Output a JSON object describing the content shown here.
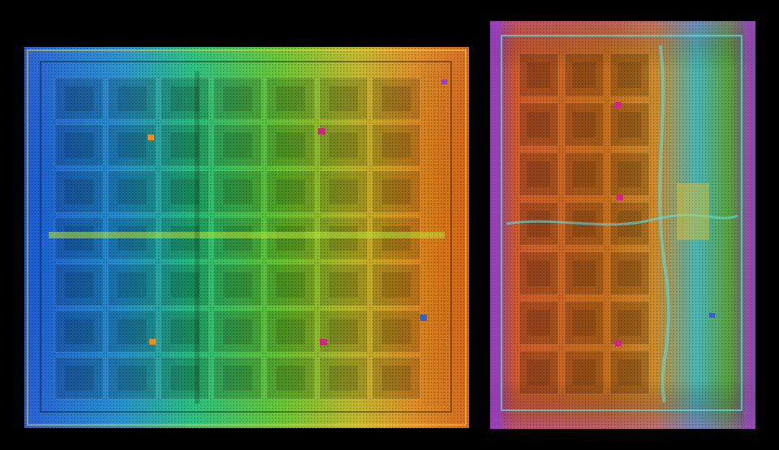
{
  "image": {
    "background": "#000000",
    "dies": [
      {
        "name": "left-die",
        "palette": [
          "#1a5fd0",
          "#1fa7c9",
          "#27c86f",
          "#7cc827",
          "#d6b21f",
          "#e0791c",
          "#c9540f"
        ],
        "blocks_grid": {
          "cols": 7,
          "rows": 7
        }
      },
      {
        "name": "right-die",
        "palette": [
          "#7a3fa0",
          "#c94f9a",
          "#e0791c",
          "#c76a1a",
          "#3fc6d8",
          "#3aa84a",
          "#b7c61f"
        ],
        "blocks_grid": {
          "cols": 3,
          "rows": 7
        }
      }
    ]
  }
}
